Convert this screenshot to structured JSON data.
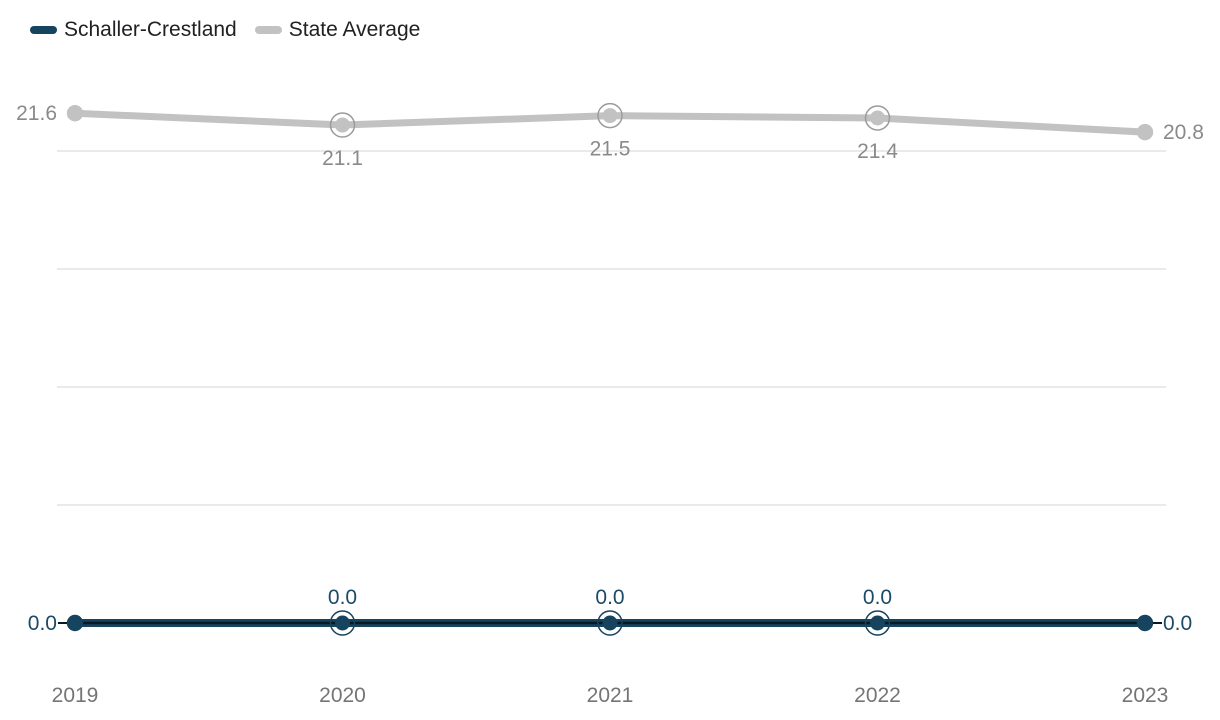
{
  "legend": {
    "items": [
      {
        "label": "Schaller-Crestland",
        "color": "#16435d"
      },
      {
        "label": "State Average",
        "color": "#c2c2c2"
      }
    ]
  },
  "chart_data": {
    "type": "line",
    "x": [
      "2019",
      "2020",
      "2021",
      "2022",
      "2023"
    ],
    "series": [
      {
        "name": "Schaller-Crestland",
        "values": [
          0.0,
          0.0,
          0.0,
          0.0,
          0.0
        ],
        "labels": [
          "0.0",
          "0.0",
          "0.0",
          "0.0",
          "0.0"
        ],
        "color": "#16435d",
        "core_color": "#0a1822",
        "ring_color": "#16435d",
        "label_color": "#1d4a66",
        "line_width": 8,
        "label_positions": [
          "left",
          "above",
          "above",
          "above",
          "right"
        ],
        "ring_indices": [
          1,
          2,
          3
        ],
        "end_connectors": true
      },
      {
        "name": "State Average",
        "values": [
          21.6,
          21.1,
          21.5,
          21.4,
          20.8
        ],
        "labels": [
          "21.6",
          "21.1",
          "21.5",
          "21.4",
          "20.8"
        ],
        "color": "#c2c2c2",
        "core_color": null,
        "ring_color": "#9b9b9b",
        "label_color": "#8a8a8a",
        "line_width": 7,
        "label_positions": [
          "left",
          "below",
          "below",
          "below",
          "right"
        ],
        "ring_indices": [
          1,
          2,
          3
        ],
        "end_connectors": false
      }
    ],
    "title": "",
    "xlabel": "",
    "ylabel": "",
    "ylim": [
      0,
      25
    ],
    "gridline_values": [
      5,
      10,
      15,
      20
    ],
    "y_axis_visible": false,
    "grid": "horizontal-only",
    "legend_position": "top-left",
    "colors": {
      "gridline": "#eaeaea",
      "axis_label": "#757575",
      "background": "#ffffff"
    }
  }
}
